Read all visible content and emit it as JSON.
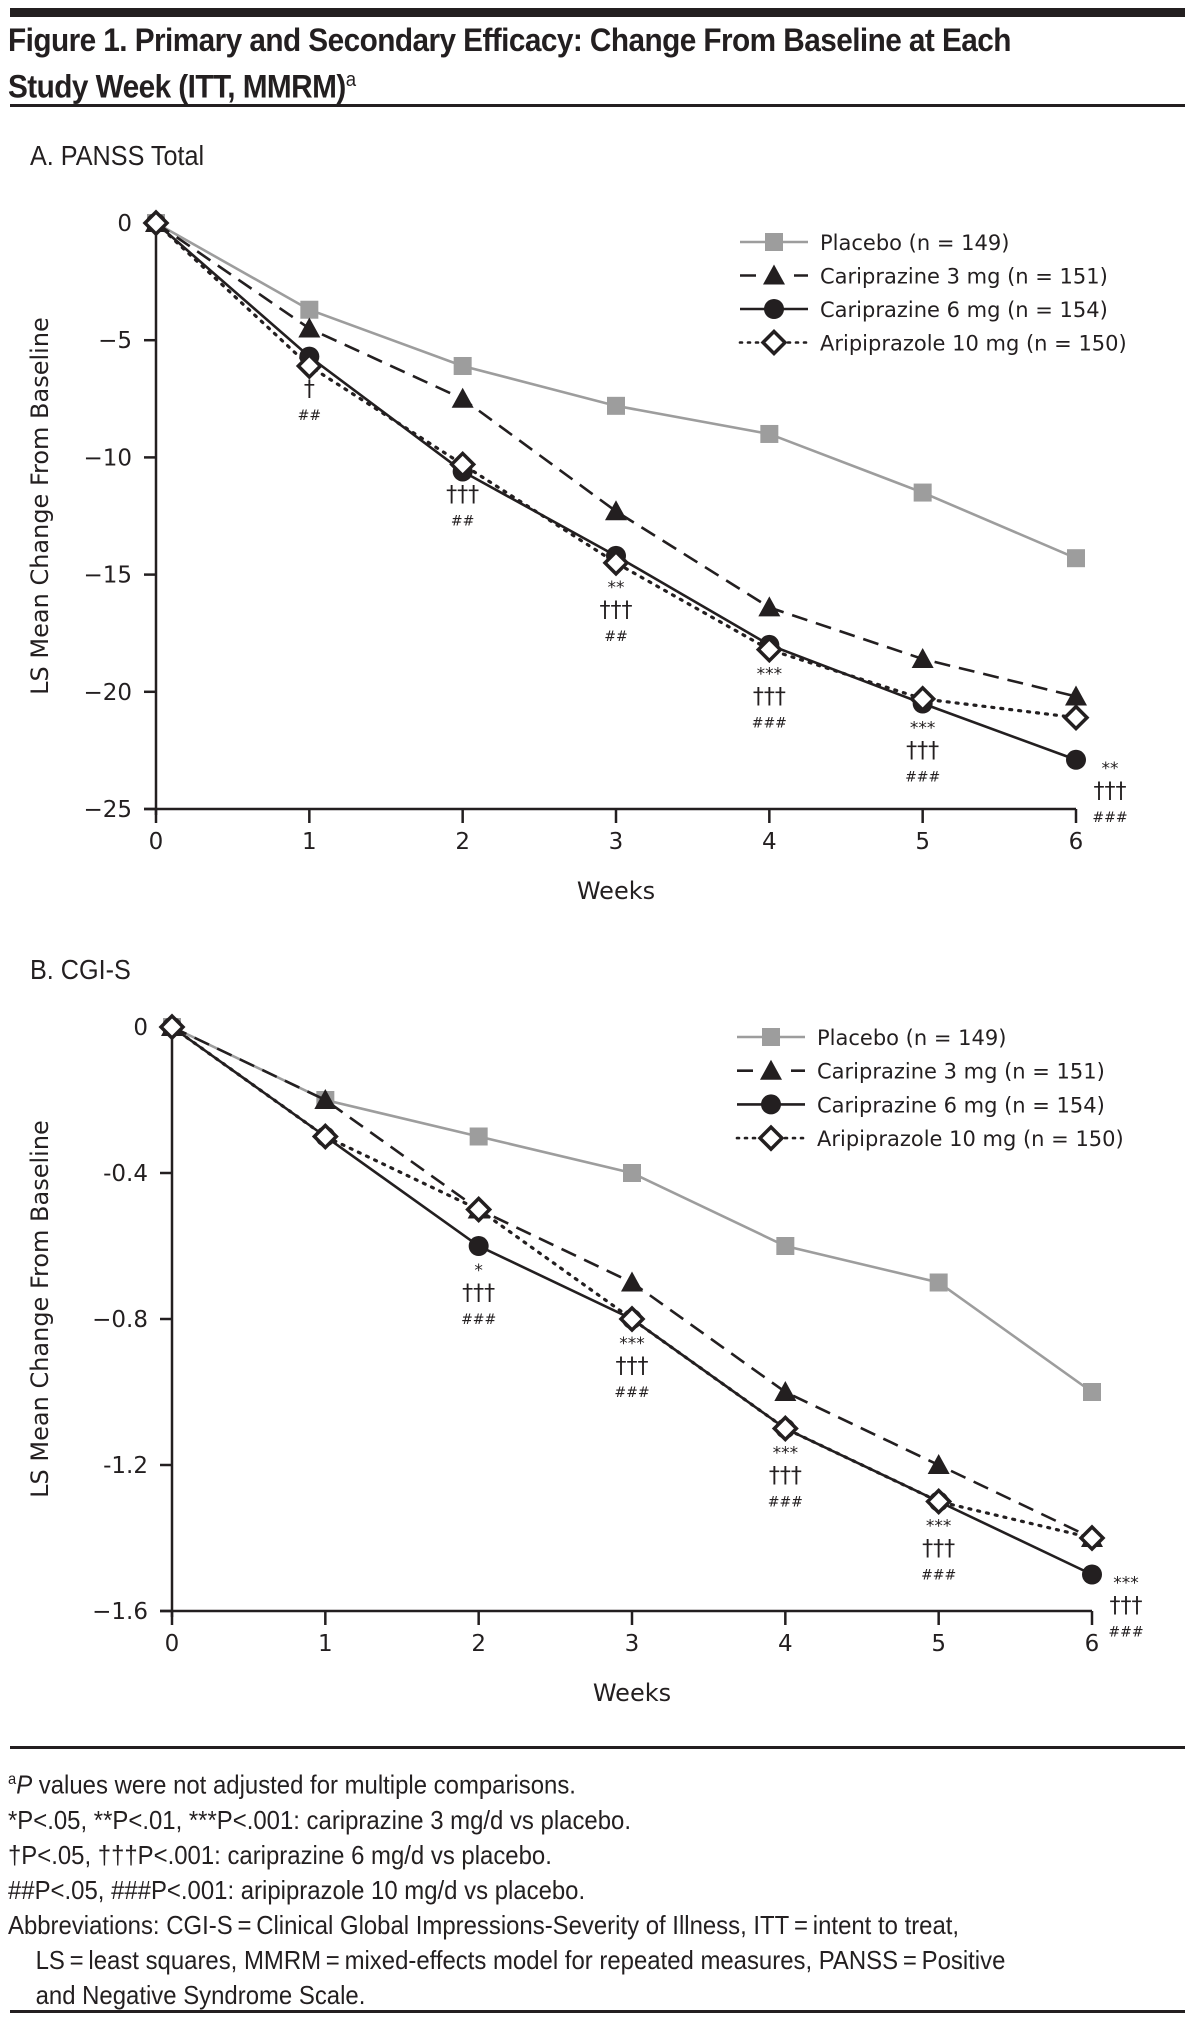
{
  "figure": {
    "title_main": "Figure 1. Primary and Secondary Efficacy: Change From Baseline at Each",
    "title_line2": "Study Week (ITT, MMRM)",
    "title_sup": "a"
  },
  "legend_styles": {
    "Placebo": {
      "color": "#9d9d9d",
      "marker": "square",
      "line": "solid"
    },
    "Cariprazine 3 mg": {
      "color": "#231f20",
      "marker": "triangle",
      "line": "dashed"
    },
    "Cariprazine 6 mg": {
      "color": "#231f20",
      "marker": "circle",
      "line": "solid"
    },
    "Aripiprazole 10 mg": {
      "color": "#231f20",
      "marker": "open-diamond",
      "line": "dotted"
    }
  },
  "chart_data": [
    {
      "type": "line",
      "panel_title": "A. PANSS Total",
      "xlabel": "Weeks",
      "ylabel": "LS Mean Change From Baseline",
      "x": [
        0,
        1,
        2,
        3,
        4,
        5,
        6
      ],
      "xticks": [
        "0",
        "1",
        "2",
        "3",
        "4",
        "5",
        "6"
      ],
      "yticks": [
        0,
        -5,
        -10,
        -15,
        -20,
        -25
      ],
      "ytick_labels": [
        "0",
        "−5",
        "−10",
        "−15",
        "−20",
        "−25"
      ],
      "ylim": [
        -25,
        0
      ],
      "xlim": [
        0,
        6
      ],
      "grid": false,
      "legend_position": "top-right",
      "series": [
        {
          "name": "Placebo",
          "legend": "Placebo (n = 149)",
          "values": [
            0,
            -3.7,
            -6.1,
            -7.8,
            -9.0,
            -11.5,
            -14.3
          ]
        },
        {
          "name": "Cariprazine 3 mg",
          "legend": "Cariprazine 3 mg (n = 151)",
          "values": [
            0,
            -4.5,
            -7.5,
            -12.3,
            -16.4,
            -18.6,
            -20.2
          ]
        },
        {
          "name": "Cariprazine 6 mg",
          "legend": "Cariprazine 6 mg (n = 154)",
          "values": [
            0,
            -5.7,
            -10.6,
            -14.2,
            -18.0,
            -20.5,
            -22.9
          ]
        },
        {
          "name": "Aripiprazole 10 mg",
          "legend": "Aripiprazole 10 mg (n = 150)",
          "values": [
            0,
            -6.1,
            -10.3,
            -14.5,
            -18.2,
            -20.3,
            -21.1
          ]
        }
      ],
      "annotations": [
        {
          "week": 1,
          "lines": [
            "†",
            "##"
          ]
        },
        {
          "week": 2,
          "lines": [
            "†††",
            "##"
          ]
        },
        {
          "week": 3,
          "lines": [
            "**",
            "†††",
            "##"
          ]
        },
        {
          "week": 4,
          "lines": [
            "***",
            "†††",
            "###"
          ]
        },
        {
          "week": 5,
          "lines": [
            "***",
            "†††",
            "###"
          ]
        },
        {
          "week": 6,
          "lines": [
            "**",
            "†††",
            "###"
          ]
        }
      ]
    },
    {
      "type": "line",
      "panel_title": "B. CGI-S",
      "xlabel": "Weeks",
      "ylabel": "LS Mean Change From Baseline",
      "x": [
        0,
        1,
        2,
        3,
        4,
        5,
        6
      ],
      "xticks": [
        "0",
        "1",
        "2",
        "3",
        "4",
        "5",
        "6"
      ],
      "yticks": [
        0,
        -0.4,
        -0.8,
        -1.2,
        -1.6
      ],
      "ytick_labels": [
        "0",
        "-0.4",
        "−0.8",
        "-1.2",
        "−1.6"
      ],
      "ylim": [
        -1.6,
        0
      ],
      "xlim": [
        0,
        6
      ],
      "grid": false,
      "legend_position": "top-right",
      "series": [
        {
          "name": "Placebo",
          "legend": "Placebo (n = 149)",
          "values": [
            0,
            -0.2,
            -0.3,
            -0.4,
            -0.6,
            -0.7,
            -1.0
          ]
        },
        {
          "name": "Cariprazine 3 mg",
          "legend": "Cariprazine 3 mg (n = 151)",
          "values": [
            0,
            -0.2,
            -0.5,
            -0.7,
            -1.0,
            -1.2,
            -1.4
          ]
        },
        {
          "name": "Cariprazine 6 mg",
          "legend": "Cariprazine 6 mg (n = 154)",
          "values": [
            0,
            -0.3,
            -0.6,
            -0.8,
            -1.1,
            -1.3,
            -1.5
          ]
        },
        {
          "name": "Aripiprazole 10 mg",
          "legend": "Aripiprazole 10 mg (n = 150)",
          "values": [
            0,
            -0.3,
            -0.5,
            -0.8,
            -1.1,
            -1.3,
            -1.4
          ]
        }
      ],
      "annotations": [
        {
          "week": 2,
          "lines": [
            "*",
            "†††",
            "###"
          ]
        },
        {
          "week": 3,
          "lines": [
            "***",
            "†††",
            "###"
          ]
        },
        {
          "week": 4,
          "lines": [
            "***",
            "†††",
            "###"
          ]
        },
        {
          "week": 5,
          "lines": [
            "***",
            "†††",
            "###"
          ]
        },
        {
          "week": 6,
          "lines": [
            "***",
            "†††",
            "###"
          ]
        }
      ]
    }
  ],
  "footnotes": {
    "note_a_sup": "a",
    "note_a_italic": "P",
    "note_a_text": " values were not adjusted for multiple comparisons.",
    "line_star": "*P<.05, **P<.01, ***P<.001: cariprazine 3 mg/d vs placebo.",
    "line_dagger": "†P<.05, †††P<.001: cariprazine 6 mg/d vs placebo.",
    "line_hash": "##P<.05, ###P<.001: aripiprazole 10 mg/d vs placebo.",
    "abbrev_1": "Abbreviations: CGI-S = Clinical Global Impressions-Severity of Illness, ITT = intent to treat,",
    "abbrev_2": "LS = least squares, MMRM = mixed-effects model for repeated measures, PANSS = Positive",
    "abbrev_3": "and Negative Syndrome Scale."
  }
}
